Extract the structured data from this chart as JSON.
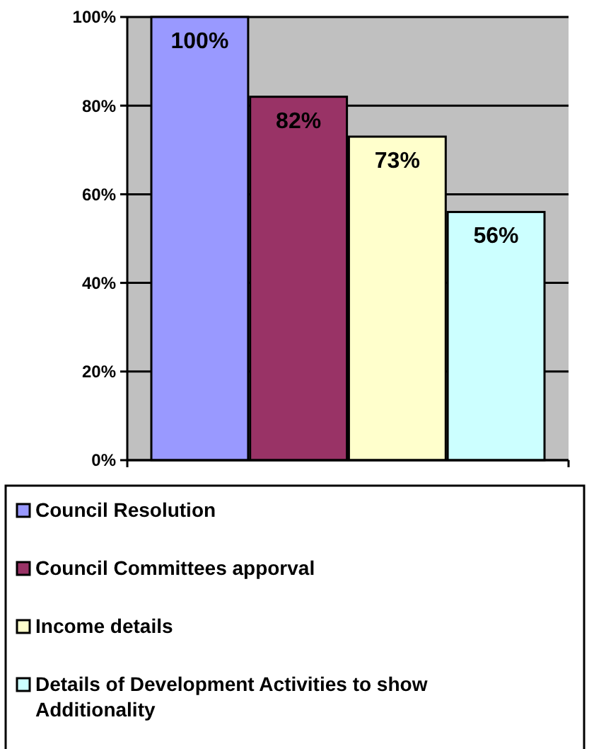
{
  "chart_data": {
    "type": "bar",
    "categories": [
      null
    ],
    "series": [
      {
        "name": "Council Resolution",
        "color": "#9999ff",
        "values": [
          100
        ],
        "value_labels": [
          "100%"
        ]
      },
      {
        "name": "Council Committees apporval",
        "color": "#993366",
        "values": [
          82
        ],
        "value_labels": [
          "82%"
        ]
      },
      {
        "name": "Income details",
        "color": "#ffffcc",
        "values": [
          73
        ],
        "value_labels": [
          "73%"
        ]
      },
      {
        "name": "Details of Development Activities to show Additionality",
        "color": "#ccffff",
        "values": [
          56
        ],
        "value_labels": [
          "56%"
        ]
      }
    ],
    "ylim": [
      0,
      100
    ],
    "yticks": [
      {
        "value": 0,
        "label": "0%"
      },
      {
        "value": 20,
        "label": "20%"
      },
      {
        "value": 40,
        "label": "40%"
      },
      {
        "value": 60,
        "label": "60%"
      },
      {
        "value": 80,
        "label": "80%"
      },
      {
        "value": 100,
        "label": "100%"
      }
    ],
    "grid": "y",
    "legend": "bottom"
  }
}
